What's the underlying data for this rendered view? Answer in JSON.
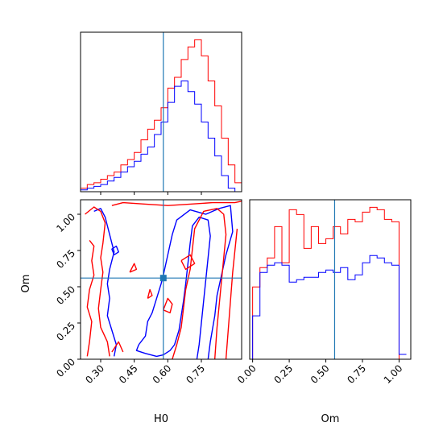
{
  "chart_data": [
    {
      "panel": "H0-marginal",
      "type": "histogram",
      "xlim": [
        0.21,
        0.93
      ],
      "truth": 0.58,
      "bins": [
        0.21,
        0.24,
        0.27,
        0.3,
        0.33,
        0.36,
        0.39,
        0.42,
        0.45,
        0.48,
        0.51,
        0.54,
        0.57,
        0.6,
        0.63,
        0.66,
        0.69,
        0.72,
        0.75,
        0.78,
        0.81,
        0.84,
        0.87,
        0.9,
        0.93
      ],
      "series": [
        {
          "color": "#ff0000",
          "values": [
            2,
            4,
            5,
            7,
            9,
            11,
            15,
            18,
            22,
            29,
            35,
            40,
            47,
            58,
            64,
            74,
            81,
            85,
            76,
            62,
            48,
            30,
            15,
            5
          ]
        },
        {
          "color": "#0000ff",
          "values": [
            1,
            2,
            3,
            4,
            6,
            8,
            11,
            14,
            17,
            21,
            25,
            32,
            39,
            50,
            59,
            62,
            56,
            49,
            39,
            30,
            20,
            9,
            2,
            0
          ]
        }
      ]
    },
    {
      "panel": "Om-marginal",
      "type": "histogram",
      "xlim": [
        -0.02,
        1.08
      ],
      "truth": 0.56,
      "bins": [
        0.0,
        0.05,
        0.1,
        0.15,
        0.2,
        0.25,
        0.3,
        0.35,
        0.4,
        0.45,
        0.5,
        0.55,
        0.6,
        0.65,
        0.7,
        0.75,
        0.8,
        0.85,
        0.9,
        0.95,
        1.0,
        1.05
      ],
      "series": [
        {
          "color": "#ff0000",
          "values": [
            30,
            38,
            42,
            55,
            40,
            62,
            60,
            46,
            55,
            48,
            50,
            55,
            52,
            58,
            57,
            61,
            63,
            62,
            58,
            57,
            0
          ]
        },
        {
          "color": "#0000ff",
          "values": [
            18,
            36,
            39,
            40,
            39,
            32,
            33,
            34,
            34,
            36,
            37,
            36,
            38,
            33,
            35,
            40,
            43,
            42,
            40,
            39,
            2
          ]
        }
      ]
    },
    {
      "panel": "joint",
      "type": "contour",
      "xlim": [
        0.21,
        0.93
      ],
      "ylim": [
        0.0,
        1.1
      ],
      "truth": [
        0.58,
        0.56
      ],
      "series": [
        {
          "color": "#0000ff",
          "contours": [
            [
              [
                0.27,
                1.02
              ],
              [
                0.3,
                1.04
              ],
              [
                0.32,
                0.98
              ],
              [
                0.34,
                0.86
              ],
              [
                0.36,
                0.74
              ],
              [
                0.34,
                0.62
              ],
              [
                0.33,
                0.52
              ],
              [
                0.34,
                0.42
              ],
              [
                0.33,
                0.3
              ],
              [
                0.35,
                0.2
              ],
              [
                0.37,
                0.1
              ],
              [
                0.36,
                0.02
              ]
            ],
            [
              [
                0.47,
                0.1
              ],
              [
                0.5,
                0.16
              ],
              [
                0.51,
                0.26
              ],
              [
                0.53,
                0.32
              ],
              [
                0.55,
                0.42
              ],
              [
                0.57,
                0.52
              ],
              [
                0.58,
                0.58
              ],
              [
                0.6,
                0.72
              ],
              [
                0.62,
                0.86
              ],
              [
                0.64,
                0.96
              ],
              [
                0.7,
                1.03
              ],
              [
                0.77,
                1.0
              ],
              [
                0.8,
                1.02
              ],
              [
                0.83,
                1.04
              ],
              [
                0.88,
                1.06
              ],
              [
                0.89,
                0.88
              ],
              [
                0.86,
                0.72
              ],
              [
                0.84,
                0.58
              ],
              [
                0.82,
                0.44
              ],
              [
                0.81,
                0.3
              ],
              [
                0.79,
                0.12
              ],
              [
                0.78,
                0.0
              ]
            ],
            [
              [
                0.47,
                0.1
              ],
              [
                0.46,
                0.06
              ],
              [
                0.5,
                0.04
              ],
              [
                0.55,
                0.02
              ],
              [
                0.58,
                0.03
              ],
              [
                0.61,
                0.06
              ],
              [
                0.63,
                0.1
              ],
              [
                0.65,
                0.2
              ],
              [
                0.66,
                0.3
              ],
              [
                0.67,
                0.4
              ],
              [
                0.68,
                0.52
              ],
              [
                0.69,
                0.66
              ],
              [
                0.7,
                0.8
              ],
              [
                0.71,
                0.92
              ],
              [
                0.74,
                0.98
              ],
              [
                0.78,
                0.96
              ],
              [
                0.79,
                0.85
              ],
              [
                0.78,
                0.7
              ],
              [
                0.77,
                0.55
              ],
              [
                0.76,
                0.4
              ],
              [
                0.75,
                0.25
              ],
              [
                0.74,
                0.1
              ],
              [
                0.73,
                0.0
              ]
            ],
            [
              [
                0.36,
                0.72
              ],
              [
                0.38,
                0.74
              ],
              [
                0.37,
                0.78
              ],
              [
                0.35,
                0.76
              ],
              [
                0.36,
                0.72
              ]
            ]
          ]
        },
        {
          "color": "#ff0000",
          "contours": [
            [
              [
                0.23,
                1.0
              ],
              [
                0.27,
                1.05
              ],
              [
                0.3,
                1.02
              ],
              [
                0.32,
                0.94
              ],
              [
                0.31,
                0.8
              ],
              [
                0.3,
                0.7
              ],
              [
                0.31,
                0.6
              ],
              [
                0.3,
                0.48
              ],
              [
                0.29,
                0.35
              ],
              [
                0.3,
                0.22
              ],
              [
                0.33,
                0.12
              ],
              [
                0.34,
                0.02
              ]
            ],
            [
              [
                0.25,
                0.82
              ],
              [
                0.27,
                0.78
              ],
              [
                0.26,
                0.68
              ],
              [
                0.27,
                0.58
              ],
              [
                0.25,
                0.48
              ],
              [
                0.24,
                0.36
              ],
              [
                0.26,
                0.26
              ],
              [
                0.25,
                0.12
              ],
              [
                0.24,
                0.02
              ]
            ],
            [
              [
                0.35,
                1.06
              ],
              [
                0.4,
                1.08
              ],
              [
                0.5,
                1.07
              ],
              [
                0.6,
                1.06
              ],
              [
                0.7,
                1.07
              ],
              [
                0.8,
                1.08
              ],
              [
                0.9,
                1.08
              ],
              [
                0.93,
                1.09
              ]
            ],
            [
              [
                0.62,
                0.0
              ],
              [
                0.64,
                0.1
              ],
              [
                0.66,
                0.22
              ],
              [
                0.67,
                0.35
              ],
              [
                0.68,
                0.48
              ],
              [
                0.7,
                0.62
              ],
              [
                0.71,
                0.76
              ],
              [
                0.72,
                0.9
              ],
              [
                0.76,
                1.02
              ],
              [
                0.82,
                1.04
              ],
              [
                0.85,
                1.0
              ],
              [
                0.86,
                0.86
              ],
              [
                0.85,
                0.7
              ],
              [
                0.84,
                0.54
              ],
              [
                0.83,
                0.38
              ],
              [
                0.82,
                0.22
              ],
              [
                0.81,
                0.0
              ]
            ],
            [
              [
                0.86,
                0.0
              ],
              [
                0.87,
                0.2
              ],
              [
                0.88,
                0.4
              ],
              [
                0.89,
                0.6
              ],
              [
                0.9,
                0.75
              ],
              [
                0.91,
                0.9
              ]
            ],
            [
              [
                0.35,
                0.05
              ],
              [
                0.38,
                0.12
              ],
              [
                0.4,
                0.05
              ]
            ],
            [
              [
                0.58,
                0.34
              ],
              [
                0.61,
                0.32
              ],
              [
                0.62,
                0.38
              ],
              [
                0.6,
                0.42
              ],
              [
                0.58,
                0.34
              ]
            ],
            [
              [
                0.66,
                0.68
              ],
              [
                0.7,
                0.72
              ],
              [
                0.72,
                0.66
              ],
              [
                0.68,
                0.62
              ],
              [
                0.66,
                0.68
              ]
            ],
            [
              [
                0.43,
                0.6
              ],
              [
                0.46,
                0.62
              ],
              [
                0.45,
                0.66
              ],
              [
                0.43,
                0.6
              ]
            ],
            [
              [
                0.51,
                0.42
              ],
              [
                0.53,
                0.44
              ],
              [
                0.52,
                0.48
              ],
              [
                0.51,
                0.42
              ]
            ]
          ]
        }
      ]
    }
  ],
  "axes": {
    "h0": {
      "xlabel": "H0",
      "ticks": [
        0.3,
        0.45,
        0.6,
        0.75
      ],
      "tick_labels": [
        "0.30",
        "0.45",
        "0.60",
        "0.75"
      ]
    },
    "om_joint": {
      "ylabel": "Om",
      "ticks": [
        0.0,
        0.25,
        0.5,
        0.75,
        1.0
      ],
      "tick_labels": [
        "0.00",
        "0.25",
        "0.50",
        "0.75",
        "1.00"
      ]
    },
    "om_marg": {
      "xlabel": "Om",
      "ticks": [
        0.0,
        0.25,
        0.5,
        0.75,
        1.0
      ],
      "tick_labels": [
        "0.00",
        "0.25",
        "0.50",
        "0.75",
        "1.00"
      ]
    }
  },
  "colors": {
    "truth": "#1f77b4",
    "frame": "#000000"
  }
}
